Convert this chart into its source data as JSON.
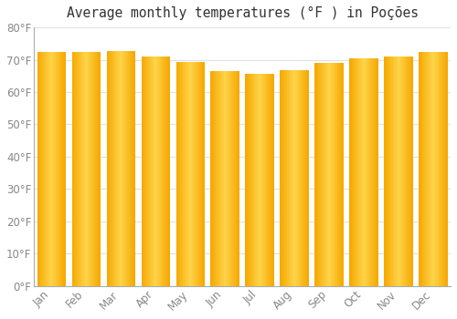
{
  "title": "Average monthly temperatures (°F ) in Poções",
  "months": [
    "Jan",
    "Feb",
    "Mar",
    "Apr",
    "May",
    "Jun",
    "Jul",
    "Aug",
    "Sep",
    "Oct",
    "Nov",
    "Dec"
  ],
  "values": [
    72.5,
    72.3,
    72.7,
    71.1,
    69.3,
    66.5,
    65.7,
    66.9,
    68.9,
    70.3,
    71.1,
    72.3
  ],
  "bar_color_edge": "#F5A800",
  "bar_color_center": "#FFD44A",
  "ylim": [
    0,
    80
  ],
  "yticks": [
    0,
    10,
    20,
    30,
    40,
    50,
    60,
    70,
    80
  ],
  "ylabel_format": "{0}°F",
  "background_color": "#FFFFFF",
  "grid_color": "#E0E0E8",
  "title_fontsize": 10.5,
  "tick_fontsize": 8.5,
  "tick_color": "#888888",
  "spine_color": "#AAAAAA",
  "bar_width": 0.82,
  "figsize": [
    5.0,
    3.5
  ],
  "dpi": 100
}
